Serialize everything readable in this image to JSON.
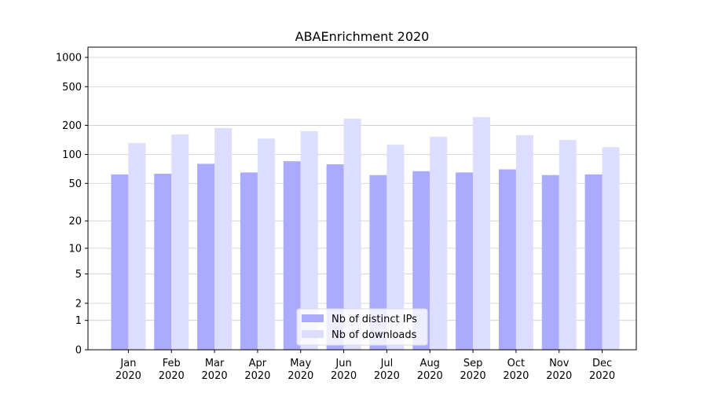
{
  "chart_data": {
    "type": "bar",
    "title": "ABAEnrichment 2020",
    "categories": [
      "Jan\n2020",
      "Feb\n2020",
      "Mar\n2020",
      "Apr\n2020",
      "May\n2020",
      "Jun\n2020",
      "Jul\n2020",
      "Aug\n2020",
      "Sep\n2020",
      "Oct\n2020",
      "Nov\n2020",
      "Dec\n2020"
    ],
    "series": [
      {
        "name": "Nb of distinct IPs",
        "color": "#aaaaff",
        "values": [
          62,
          63,
          80,
          65,
          85,
          79,
          61,
          67,
          65,
          70,
          61,
          62
        ]
      },
      {
        "name": "Nb of downloads",
        "color": "#ddddff",
        "values": [
          131,
          161,
          187,
          146,
          174,
          234,
          126,
          152,
          243,
          158,
          141,
          119
        ]
      }
    ],
    "yscale": "log1p",
    "ylim": [
      0,
      1273
    ],
    "yticks": [
      0,
      1,
      2,
      5,
      10,
      20,
      50,
      100,
      200,
      500,
      1000
    ],
    "grid": true,
    "legend": "lower center"
  }
}
